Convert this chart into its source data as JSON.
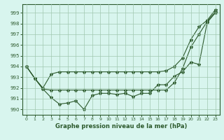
{
  "xlabel": "Graphe pression niveau de la mer (hPa)",
  "xlim": [
    -0.5,
    23.5
  ],
  "ylim": [
    989.5,
    999.8
  ],
  "yticks": [
    990,
    991,
    992,
    993,
    994,
    995,
    996,
    997,
    998,
    999
  ],
  "xticks": [
    0,
    1,
    2,
    3,
    4,
    5,
    6,
    7,
    8,
    9,
    10,
    11,
    12,
    13,
    14,
    15,
    16,
    17,
    18,
    19,
    20,
    21,
    22,
    23
  ],
  "background_color": "#d8f5ee",
  "grid_color": "#a0c8b0",
  "line_color": "#2d5a2d",
  "series1_jagged": [
    994.0,
    992.9,
    991.9,
    991.1,
    990.5,
    990.6,
    990.8,
    990.0,
    991.3,
    991.5,
    991.5,
    991.4,
    991.5,
    991.2,
    991.5,
    991.5,
    992.3,
    992.3,
    993.1,
    993.5,
    994.4,
    994.2,
    998.1,
    999.0
  ],
  "series2_low": [
    994.0,
    992.9,
    991.9,
    991.8,
    991.8,
    991.8,
    991.8,
    991.8,
    991.8,
    991.8,
    991.8,
    991.8,
    991.8,
    991.8,
    991.8,
    991.8,
    991.8,
    991.8,
    992.5,
    993.8,
    995.8,
    997.0,
    998.2,
    999.1
  ],
  "series3_high": [
    994.0,
    992.9,
    992.0,
    993.3,
    993.5,
    993.5,
    993.5,
    993.5,
    993.5,
    993.5,
    993.5,
    993.5,
    993.5,
    993.5,
    993.5,
    993.5,
    993.5,
    993.6,
    994.0,
    994.8,
    996.5,
    997.7,
    998.3,
    999.3
  ]
}
